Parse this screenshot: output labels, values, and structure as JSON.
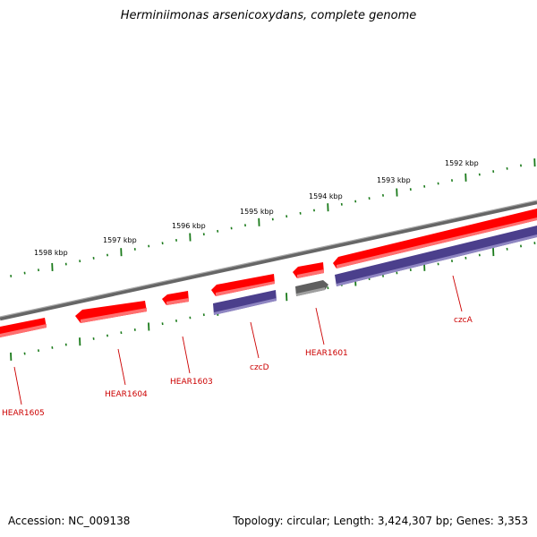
{
  "title": "Herminiimonas arsenicoxydans, complete genome",
  "footer": {
    "accession": "Accession: NC_009138",
    "topology": "Topology: circular; Length: 3,424,307 bp; Genes: 3,353"
  },
  "colors": {
    "forward_gene": "#ff0000",
    "reverse_gene": "#4b3f8c",
    "other_gene": "#666666",
    "backbone": "#888888",
    "ticks": "#1a7a1a",
    "label": "#cc0000"
  },
  "scale_labels": [
    "1598 kbp",
    "1597 kbp",
    "1596 kbp",
    "1595 kbp",
    "1594 kbp",
    "1593 kbp",
    "1592 kbp"
  ],
  "gene_labels": [
    "HEAR1605",
    "HEAR1604",
    "HEAR1603",
    "czcD",
    "HEAR1601",
    "czcA"
  ]
}
